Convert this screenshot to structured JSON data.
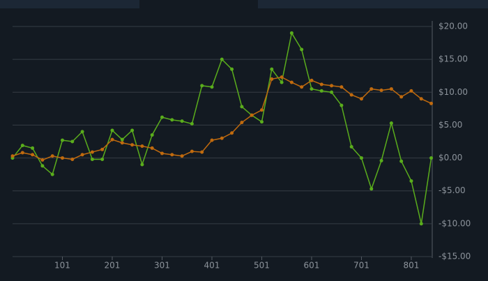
{
  "chart_data": {
    "type": "line",
    "x": [
      1,
      21,
      41,
      61,
      81,
      101,
      121,
      141,
      161,
      181,
      201,
      221,
      241,
      261,
      281,
      301,
      321,
      341,
      361,
      381,
      401,
      421,
      441,
      461,
      481,
      501,
      521,
      541,
      561,
      581,
      601,
      621,
      641,
      661,
      681,
      701,
      721,
      741,
      761,
      781,
      801,
      821,
      841
    ],
    "series": [
      {
        "color": "#5aad1c",
        "values": [
          0,
          1.9,
          1.5,
          -1.2,
          -2.5,
          2.7,
          2.5,
          4.0,
          -0.2,
          -0.2,
          4.2,
          2.8,
          4.2,
          -1.0,
          3.5,
          6.2,
          5.8,
          5.6,
          5.2,
          11.0,
          10.8,
          15.0,
          13.5,
          7.8,
          6.5,
          5.5,
          13.5,
          11.5,
          19.0,
          16.5,
          10.5,
          10.2,
          10.0,
          8.0,
          1.7,
          0,
          -4.7,
          -0.4,
          5.3,
          -0.5,
          -3.5,
          -10,
          0
        ]
      },
      {
        "color": "#c06a0e",
        "values": [
          0.3,
          0.8,
          0.5,
          -0.3,
          0.3,
          0,
          -0.2,
          0.5,
          0.9,
          1.3,
          2.8,
          2.3,
          2.0,
          1.8,
          1.5,
          0.7,
          0.5,
          0.3,
          1.0,
          0.9,
          2.7,
          3.0,
          3.8,
          5.4,
          6.5,
          7.3,
          12.0,
          12.3,
          11.5,
          10.8,
          11.8,
          11.2,
          11.0,
          10.8,
          9.6,
          9.0,
          10.5,
          10.3,
          10.5,
          9.3,
          10.2,
          9.0,
          8.3
        ]
      }
    ],
    "xlim": [
      1,
      843
    ],
    "xticks": [
      101,
      201,
      301,
      401,
      501,
      601,
      701,
      801
    ],
    "ylim": [
      -15,
      20
    ],
    "yticks": [
      {
        "value": -15,
        "label": "-$15.00"
      },
      {
        "value": -10,
        "label": "-$10.00"
      },
      {
        "value": -5,
        "label": "-$5.00"
      },
      {
        "value": 0,
        "label": "$0.00"
      },
      {
        "value": 5,
        "label": "$5.00"
      },
      {
        "value": 10,
        "label": "$10.00"
      },
      {
        "value": 15,
        "label": "$15.00"
      },
      {
        "value": 20,
        "label": "$20.00"
      }
    ],
    "grid": true
  }
}
